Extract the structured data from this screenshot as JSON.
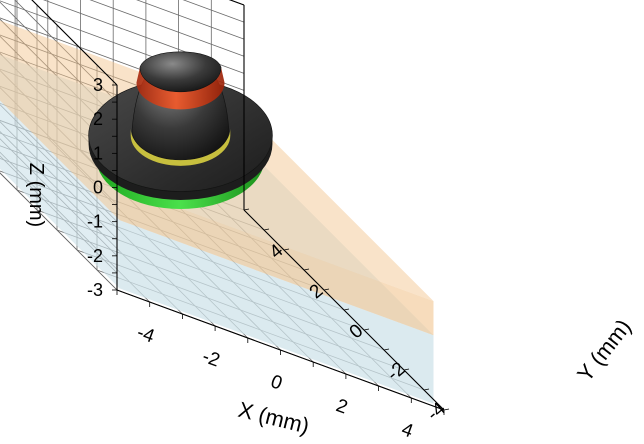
{
  "chart_data": {
    "type": "3d-surface",
    "axes": {
      "x": {
        "label": "X (mm)",
        "range": [
          -5,
          5
        ],
        "ticks": [
          -4,
          -2,
          0,
          2,
          4
        ]
      },
      "y": {
        "label": "Y (mm)",
        "range": [
          -5,
          5
        ],
        "ticks": [
          -4,
          -2,
          0,
          2,
          4
        ]
      },
      "z": {
        "label": "Z (mm)",
        "range": [
          -3,
          3
        ],
        "ticks": [
          -3,
          -2,
          -1,
          0,
          1,
          2,
          3
        ]
      }
    },
    "grid": true,
    "objects": [
      {
        "shape": "slab",
        "color": "#cfe3ea",
        "x": [
          -4.8,
          4.8
        ],
        "y": [
          -4.8,
          4.8
        ],
        "z": [
          -3,
          -1
        ]
      },
      {
        "shape": "slab",
        "color": "#f2c48f",
        "x": [
          -4.8,
          4.8
        ],
        "y": [
          -4.8,
          4.8
        ],
        "z": [
          -1,
          0
        ]
      },
      {
        "shape": "disk",
        "color": "#3bd43b",
        "radius": 2.2,
        "z": [
          -0.3,
          0.1
        ]
      },
      {
        "shape": "disk",
        "color": "#303030",
        "radius": 2.4,
        "z": [
          0.1,
          0.35
        ]
      },
      {
        "shape": "dome",
        "color": "#3a3a3a",
        "radius": 1.1,
        "z": [
          0.35,
          2.8
        ]
      },
      {
        "shape": "ring",
        "color": "#e0401a",
        "radius": 1.15,
        "z": [
          1.9,
          2.35
        ]
      },
      {
        "shape": "ring",
        "color": "#d8cf40",
        "radius": 1.3,
        "z": [
          0.35,
          0.55
        ]
      }
    ]
  }
}
